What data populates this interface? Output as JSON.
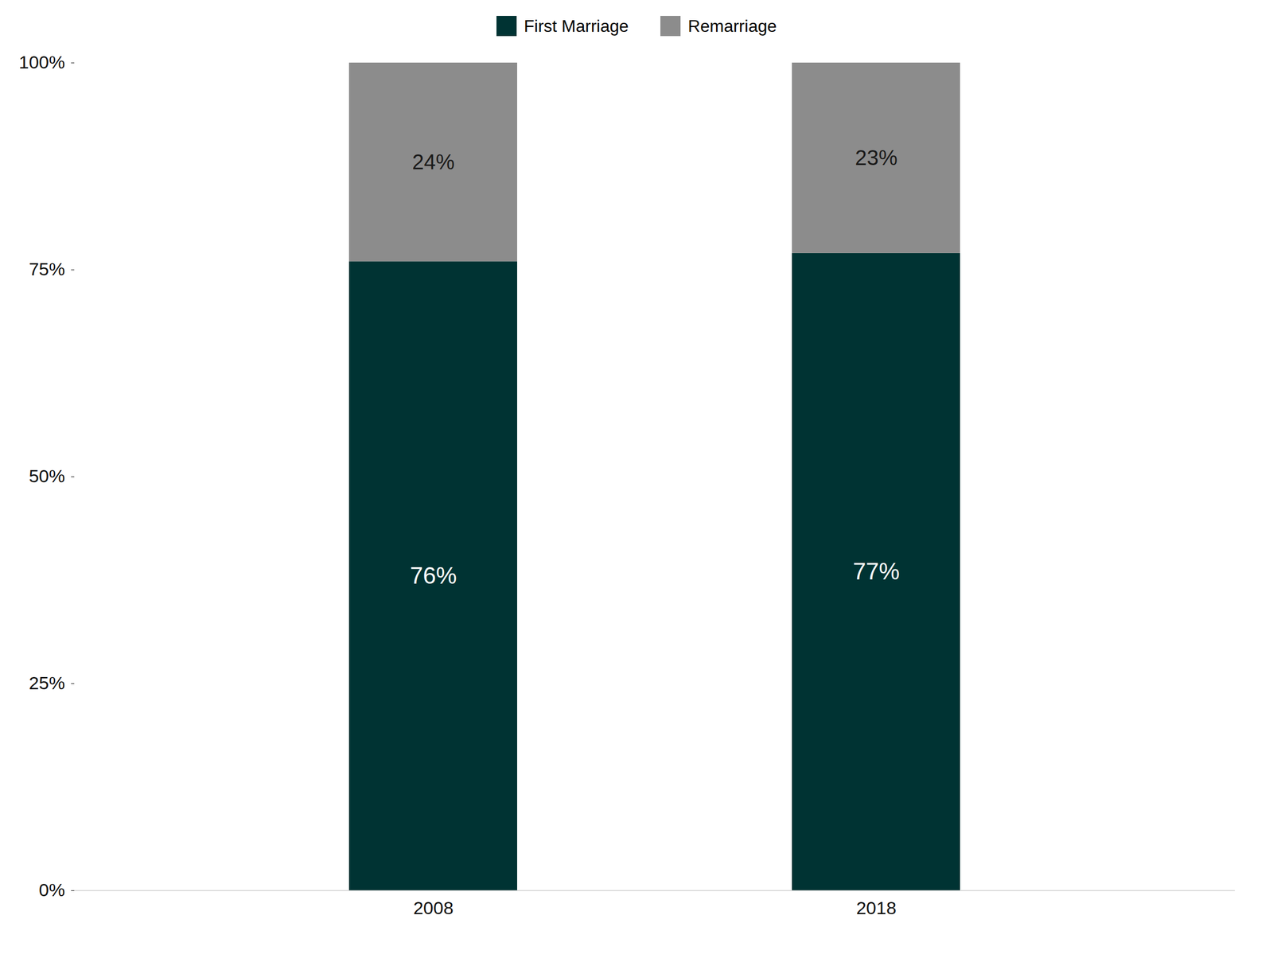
{
  "chart_data": {
    "type": "bar",
    "stacked": true,
    "categories": [
      "2008",
      "2018"
    ],
    "series": [
      {
        "name": "First Marriage",
        "color": "#003333",
        "values": [
          76,
          77
        ],
        "value_labels": [
          "76%",
          "77%"
        ]
      },
      {
        "name": "Remarriage",
        "color": "#8c8c8c",
        "values": [
          24,
          23
        ],
        "value_labels": [
          "24%",
          "23%"
        ]
      }
    ],
    "ylim": [
      0,
      100
    ],
    "yticks": [
      {
        "value": 0,
        "label": "0%"
      },
      {
        "value": 25,
        "label": "25%"
      },
      {
        "value": 50,
        "label": "50%"
      },
      {
        "value": 75,
        "label": "75%"
      },
      {
        "value": 100,
        "label": "100%"
      }
    ],
    "data_labels": true,
    "legend": "top",
    "grid": false
  }
}
